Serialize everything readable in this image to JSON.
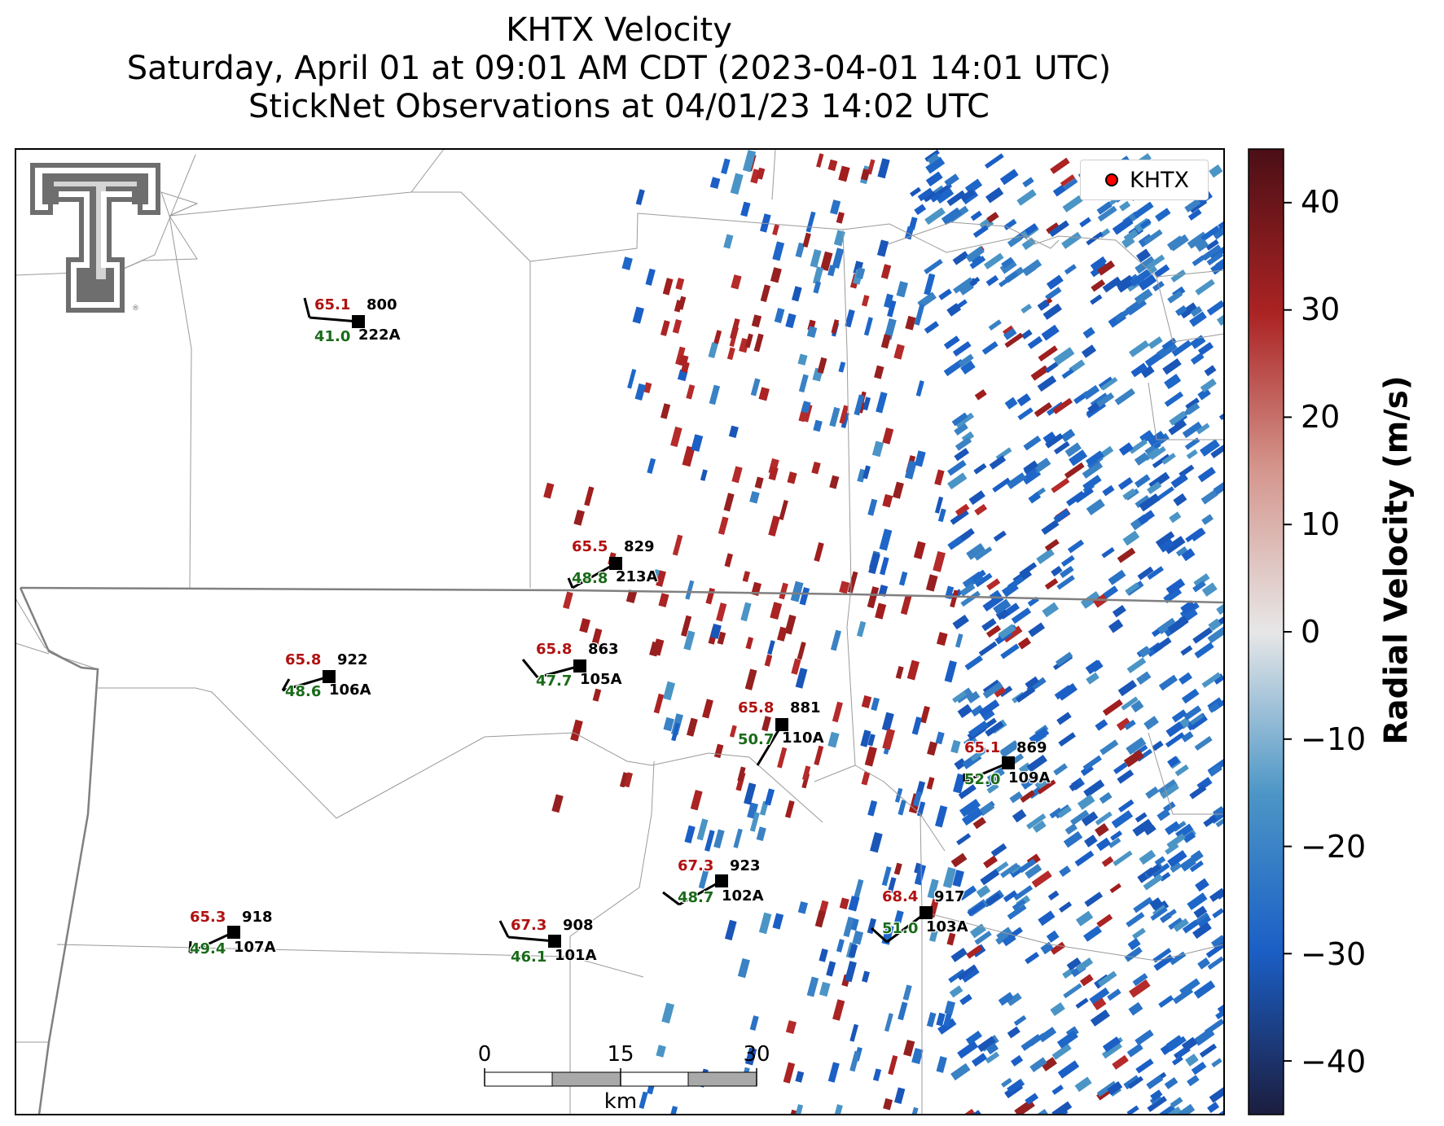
{
  "title": {
    "line1": "KHTX Velocity",
    "line2": "Saturday, April 01 at 09:01 AM CDT (2023-04-01 14:01 UTC)",
    "line3": "StickNet Observations at 04/01/23 14:02 UTC"
  },
  "legend": {
    "label": "KHTX",
    "marker_color": "#ff0000"
  },
  "colorbar": {
    "title": "Radial Velocity (m/s)",
    "ticks": [
      40,
      30,
      20,
      10,
      0,
      -10,
      -20,
      -30,
      -40
    ],
    "tick_labels": [
      "40",
      "30",
      "20",
      "10",
      "0",
      "−10",
      "−20",
      "−30",
      "−40"
    ],
    "range": [
      -45,
      45
    ],
    "colors": [
      "#1c1d3e",
      "#1b5fc6",
      "#4b95c6",
      "#e7e7e7",
      "#d4958c",
      "#ab2323",
      "#4a0f16"
    ]
  },
  "scale_bar": {
    "labels": [
      "0",
      "15",
      "30"
    ],
    "unit": "km"
  },
  "logo": {
    "name": "Texas Tech double T",
    "color": "#6e6e6e"
  },
  "stations": [
    {
      "id": "800",
      "probe": "222A",
      "temp": "65.1",
      "dew": "41.0"
    },
    {
      "id": "829",
      "probe": "213A",
      "temp": "65.5",
      "dew": "48.8"
    },
    {
      "id": "922",
      "probe": "106A",
      "temp": "65.8",
      "dew": "48.6"
    },
    {
      "id": "863",
      "probe": "105A",
      "temp": "65.8",
      "dew": "47.7"
    },
    {
      "id": "881",
      "probe": "110A",
      "temp": "65.8",
      "dew": "50.7"
    },
    {
      "id": "869",
      "probe": "109A",
      "temp": "65.1",
      "dew": "52.0"
    },
    {
      "id": "923",
      "probe": "102A",
      "temp": "67.3",
      "dew": "48.7"
    },
    {
      "id": "917",
      "probe": "103A",
      "temp": "68.4",
      "dew": "51.0"
    },
    {
      "id": "918",
      "probe": "107A",
      "temp": "65.3",
      "dew": "49.4"
    },
    {
      "id": "908",
      "probe": "101A",
      "temp": "67.3",
      "dew": "46.1"
    }
  ]
}
